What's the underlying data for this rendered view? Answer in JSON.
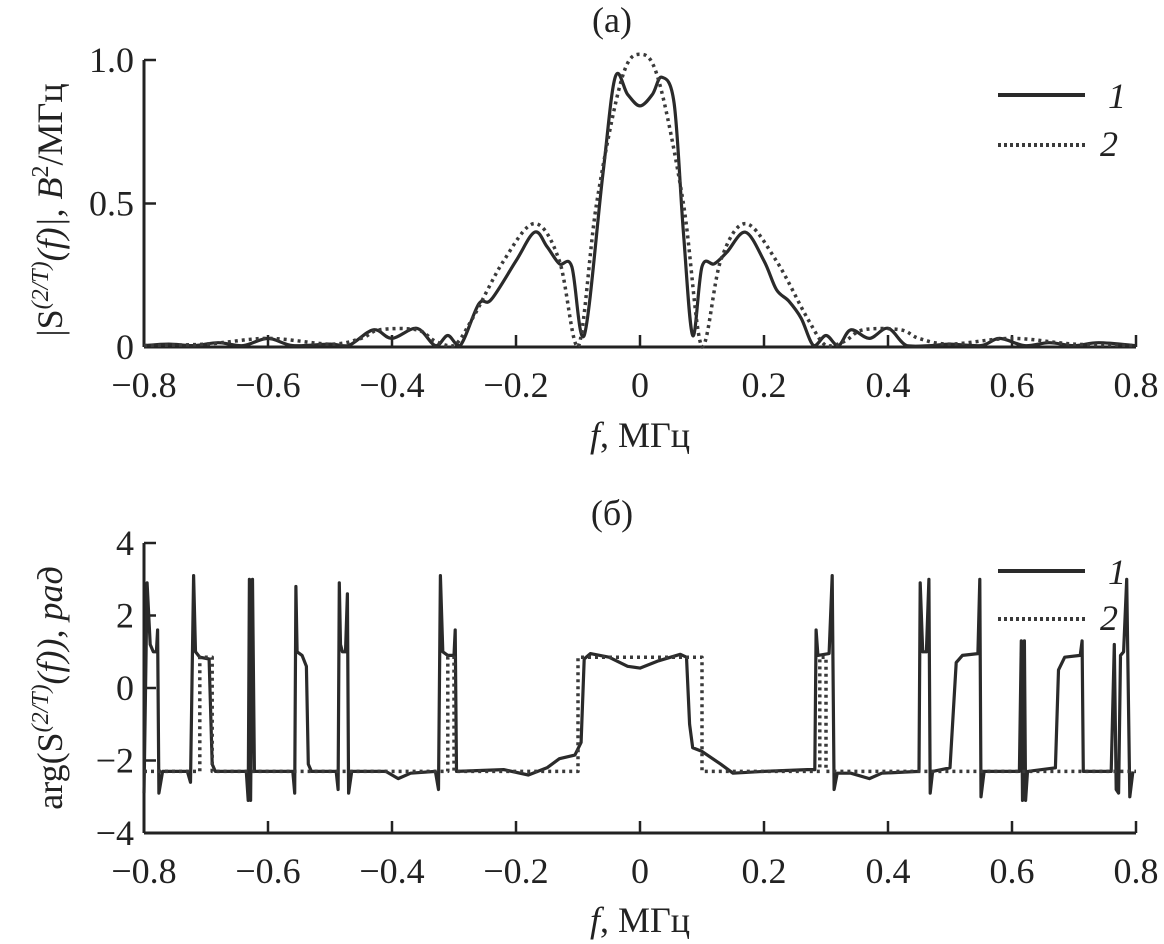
{
  "chart_data": [
    {
      "type": "line",
      "title": "(a)",
      "xlabel": {
        "var": "f",
        "unit": ", МГц"
      },
      "ylabel": {
        "parts": [
          "|S",
          "(2/T)",
          "(f)|, В",
          "2",
          "/МГц"
        ]
      },
      "xlim": [
        -0.8,
        0.8
      ],
      "ylim": [
        0,
        1.0
      ],
      "xticks": [
        -0.8,
        -0.6,
        -0.4,
        -0.2,
        0,
        0.2,
        0.4,
        0.6,
        0.8
      ],
      "xtick_labels": [
        "−0.8",
        "−0.6",
        "−0.4",
        "−0.2",
        "0",
        "0.2",
        "0.4",
        "0.6",
        "0.8"
      ],
      "yticks": [
        0,
        0.5,
        1.0
      ],
      "ytick_labels": [
        "0",
        "0.5",
        "1.0"
      ],
      "grid": false,
      "legend": "top-right",
      "series": [
        {
          "name": "1",
          "style": "solid",
          "color": "#2a2a2a",
          "x": [
            -0.8,
            -0.76,
            -0.72,
            -0.68,
            -0.64,
            -0.6,
            -0.56,
            -0.5,
            -0.47,
            -0.43,
            -0.4,
            -0.36,
            -0.33,
            -0.31,
            -0.29,
            -0.26,
            -0.24,
            -0.2,
            -0.17,
            -0.15,
            -0.13,
            -0.11,
            -0.09,
            -0.06,
            -0.04,
            -0.02,
            0,
            0.02,
            0.035,
            0.055,
            0.07,
            0.085,
            0.1,
            0.12,
            0.14,
            0.17,
            0.2,
            0.22,
            0.24,
            0.26,
            0.28,
            0.3,
            0.32,
            0.34,
            0.37,
            0.4,
            0.43,
            0.47,
            0.5,
            0.55,
            0.58,
            0.62,
            0.66,
            0.7,
            0.74,
            0.8
          ],
          "y": [
            0.005,
            0.01,
            0.005,
            0.015,
            0.005,
            0.03,
            0.005,
            0.01,
            0.005,
            0.06,
            0.03,
            0.065,
            0.005,
            0.04,
            0.005,
            0.15,
            0.165,
            0.3,
            0.4,
            0.35,
            0.29,
            0.28,
            0.04,
            0.6,
            0.94,
            0.88,
            0.84,
            0.88,
            0.94,
            0.85,
            0.4,
            0.04,
            0.28,
            0.29,
            0.33,
            0.4,
            0.3,
            0.2,
            0.16,
            0.1,
            0.005,
            0.04,
            0.005,
            0.06,
            0.03,
            0.065,
            0.005,
            0.005,
            0.01,
            0.005,
            0.03,
            0.005,
            0.015,
            0.005,
            0.015,
            0.005
          ]
        },
        {
          "name": "2",
          "style": "dotted",
          "color": "#3a3a3a",
          "x": [
            -0.8,
            -0.7,
            -0.6,
            -0.5,
            -0.45,
            -0.42,
            -0.36,
            -0.33,
            -0.3,
            -0.27,
            -0.22,
            -0.17,
            -0.13,
            -0.1,
            -0.07,
            -0.03,
            0,
            0.03,
            0.07,
            0.1,
            0.13,
            0.17,
            0.22,
            0.27,
            0.3,
            0.33,
            0.36,
            0.42,
            0.45,
            0.5,
            0.6,
            0.7,
            0.8
          ],
          "y": [
            0.005,
            0.01,
            0.03,
            0.01,
            0.03,
            0.06,
            0.06,
            0.02,
            0.005,
            0.1,
            0.3,
            0.43,
            0.3,
            0.0,
            0.5,
            0.93,
            1.02,
            0.93,
            0.5,
            0.0,
            0.3,
            0.43,
            0.3,
            0.1,
            0.005,
            0.02,
            0.06,
            0.06,
            0.03,
            0.01,
            0.03,
            0.01,
            0.005
          ]
        }
      ]
    },
    {
      "type": "line",
      "title": "(б)",
      "xlabel": {
        "var": "f",
        "unit": ", МГц"
      },
      "ylabel": {
        "parts": [
          "arg(S",
          "(2/T)",
          "(f)), рад"
        ]
      },
      "xlim": [
        -0.8,
        0.8
      ],
      "ylim": [
        -4,
        4
      ],
      "xticks": [
        -0.8,
        -0.6,
        -0.4,
        -0.2,
        0,
        0.2,
        0.4,
        0.6,
        0.8
      ],
      "xtick_labels": [
        "−0.8",
        "−0.6",
        "−0.4",
        "−0.2",
        "0",
        "0.2",
        "0.4",
        "0.6",
        "0.8"
      ],
      "yticks": [
        -4,
        -2,
        0,
        2,
        4
      ],
      "ytick_labels": [
        "−4",
        "−2",
        "0",
        "2",
        "4"
      ],
      "grid": false,
      "legend": "top-right",
      "series": [
        {
          "name": "1",
          "style": "solid",
          "color": "#2a2a2a",
          "points": [
            [
              -0.8,
              -2.9
            ],
            [
              -0.795,
              2.9
            ],
            [
              -0.79,
              1.2
            ],
            [
              -0.785,
              1.0
            ],
            [
              -0.78,
              1.0
            ],
            [
              -0.778,
              1.6
            ],
            [
              -0.776,
              -2.9
            ],
            [
              -0.77,
              -2.3
            ],
            [
              -0.73,
              -2.3
            ],
            [
              -0.725,
              -2.6
            ],
            [
              -0.72,
              3.1
            ],
            [
              -0.717,
              1.0
            ],
            [
              -0.71,
              0.85
            ],
            [
              -0.695,
              0.8
            ],
            [
              -0.69,
              -2.1
            ],
            [
              -0.685,
              -2.3
            ],
            [
              -0.635,
              -2.3
            ],
            [
              -0.632,
              -3.1
            ],
            [
              -0.63,
              3.0
            ],
            [
              -0.628,
              -3.1
            ],
            [
              -0.625,
              3.0
            ],
            [
              -0.622,
              -2.3
            ],
            [
              -0.56,
              -2.3
            ],
            [
              -0.557,
              -2.9
            ],
            [
              -0.555,
              2.8
            ],
            [
              -0.553,
              1.0
            ],
            [
              -0.545,
              0.9
            ],
            [
              -0.538,
              0.6
            ],
            [
              -0.535,
              -2.1
            ],
            [
              -0.53,
              -2.3
            ],
            [
              -0.49,
              -2.3
            ],
            [
              -0.487,
              -2.8
            ],
            [
              -0.485,
              2.9
            ],
            [
              -0.483,
              1.2
            ],
            [
              -0.48,
              1.0
            ],
            [
              -0.475,
              1.0
            ],
            [
              -0.472,
              2.6
            ],
            [
              -0.47,
              -2.9
            ],
            [
              -0.465,
              -2.3
            ],
            [
              -0.41,
              -2.3
            ],
            [
              -0.39,
              -2.5
            ],
            [
              -0.37,
              -2.35
            ],
            [
              -0.33,
              -2.3
            ],
            [
              -0.325,
              -2.8
            ],
            [
              -0.322,
              3.1
            ],
            [
              -0.318,
              1.0
            ],
            [
              -0.31,
              0.9
            ],
            [
              -0.3,
              0.9
            ],
            [
              -0.298,
              1.6
            ],
            [
              -0.296,
              -2.3
            ],
            [
              -0.22,
              -2.25
            ],
            [
              -0.18,
              -2.4
            ],
            [
              -0.15,
              -2.2
            ],
            [
              -0.13,
              -1.95
            ],
            [
              -0.105,
              -1.85
            ],
            [
              -0.095,
              -1.5
            ],
            [
              -0.09,
              0.8
            ],
            [
              -0.08,
              0.95
            ],
            [
              -0.05,
              0.85
            ],
            [
              -0.02,
              0.6
            ],
            [
              0,
              0.55
            ],
            [
              0.03,
              0.75
            ],
            [
              0.065,
              0.93
            ],
            [
              0.075,
              0.85
            ],
            [
              0.08,
              -1.0
            ],
            [
              0.085,
              -1.65
            ],
            [
              0.1,
              -1.75
            ],
            [
              0.13,
              -2.1
            ],
            [
              0.15,
              -2.35
            ],
            [
              0.2,
              -2.3
            ],
            [
              0.27,
              -2.25
            ],
            [
              0.282,
              -2.25
            ],
            [
              0.284,
              1.6
            ],
            [
              0.287,
              0.9
            ],
            [
              0.305,
              0.95
            ],
            [
              0.31,
              3.1
            ],
            [
              0.313,
              -2.8
            ],
            [
              0.318,
              -2.35
            ],
            [
              0.34,
              -2.35
            ],
            [
              0.37,
              -2.5
            ],
            [
              0.39,
              -2.35
            ],
            [
              0.45,
              -2.3
            ],
            [
              0.452,
              2.9
            ],
            [
              0.456,
              1.0
            ],
            [
              0.462,
              1.0
            ],
            [
              0.466,
              3.0
            ],
            [
              0.468,
              -2.9
            ],
            [
              0.472,
              -2.3
            ],
            [
              0.5,
              -2.2
            ],
            [
              0.51,
              0.7
            ],
            [
              0.52,
              0.9
            ],
            [
              0.545,
              0.95
            ],
            [
              0.548,
              3.0
            ],
            [
              0.55,
              -3.0
            ],
            [
              0.555,
              -2.3
            ],
            [
              0.612,
              -2.3
            ],
            [
              0.615,
              1.3
            ],
            [
              0.617,
              -3.1
            ],
            [
              0.62,
              1.3
            ],
            [
              0.622,
              -3.1
            ],
            [
              0.625,
              -2.3
            ],
            [
              0.67,
              -2.2
            ],
            [
              0.675,
              0.5
            ],
            [
              0.685,
              0.85
            ],
            [
              0.71,
              0.9
            ],
            [
              0.713,
              1.3
            ],
            [
              0.715,
              -2.3
            ],
            [
              0.76,
              -2.3
            ],
            [
              0.765,
              1.2
            ],
            [
              0.768,
              -2.8
            ],
            [
              0.772,
              -2.9
            ],
            [
              0.775,
              0.9
            ],
            [
              0.78,
              1.0
            ],
            [
              0.785,
              3.0
            ],
            [
              0.79,
              -3.0
            ],
            [
              0.795,
              -2.3
            ]
          ]
        },
        {
          "name": "2",
          "style": "dotted",
          "color": "#3a3a3a",
          "points": [
            [
              -0.8,
              -2.3
            ],
            [
              -0.71,
              -2.3
            ],
            [
              -0.71,
              0.85
            ],
            [
              -0.69,
              0.85
            ],
            [
              -0.69,
              -2.3
            ],
            [
              -0.31,
              -2.3
            ],
            [
              -0.31,
              0.85
            ],
            [
              -0.3,
              0.85
            ],
            [
              -0.3,
              -2.3
            ],
            [
              -0.1,
              -2.3
            ],
            [
              -0.1,
              0.85
            ],
            [
              0.1,
              0.85
            ],
            [
              0.1,
              -2.3
            ],
            [
              0.29,
              -2.3
            ],
            [
              0.29,
              0.85
            ],
            [
              0.3,
              0.85
            ],
            [
              0.3,
              -2.3
            ],
            [
              0.8,
              -2.3
            ]
          ]
        }
      ]
    }
  ]
}
